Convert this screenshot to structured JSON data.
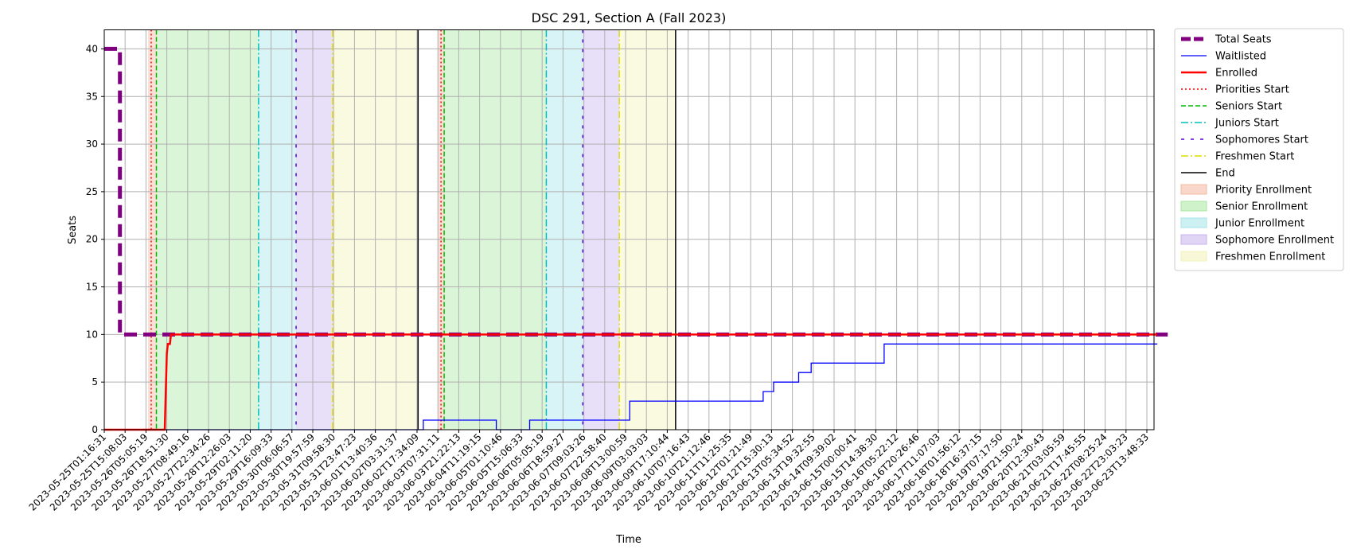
{
  "chart_data": {
    "type": "line",
    "title": "DSC 291, Section A (Fall 2023)",
    "xlabel": "Time",
    "ylabel": "Seats",
    "ylim": [
      0,
      42
    ],
    "yticks": [
      0,
      5,
      10,
      15,
      20,
      25,
      30,
      35,
      40
    ],
    "grid": true,
    "legend_position": "outside-top-right",
    "xtick_labels": [
      "2023-05-25T01:16:31",
      "2023-05-25T15:08:03",
      "2023-05-26T05:05:19",
      "2023-05-26T18:51:30",
      "2023-05-27T08:49:16",
      "2023-05-27T22:34:26",
      "2023-05-28T12:26:03",
      "2023-05-29T02:11:20",
      "2023-05-29T16:09:33",
      "2023-05-30T06:06:57",
      "2023-05-30T19:57:59",
      "2023-05-31T09:58:30",
      "2023-05-31T23:47:23",
      "2023-06-01T13:40:36",
      "2023-06-02T03:31:37",
      "2023-06-02T17:34:09",
      "2023-06-03T07:31:11",
      "2023-06-03T21:22:13",
      "2023-06-04T11:19:15",
      "2023-06-05T01:10:46",
      "2023-06-05T15:06:33",
      "2023-06-06T05:05:19",
      "2023-06-06T18:59:27",
      "2023-06-07T09:03:26",
      "2023-06-07T22:58:40",
      "2023-06-08T13:00:59",
      "2023-06-09T03:03:03",
      "2023-06-09T17:10:44",
      "2023-06-10T07:16:43",
      "2023-06-10T21:12:46",
      "2023-06-11T11:25:35",
      "2023-06-12T01:21:49",
      "2023-06-12T15:30:13",
      "2023-06-13T05:34:52",
      "2023-06-13T19:32:55",
      "2023-06-14T09:39:02",
      "2023-06-15T00:00:41",
      "2023-06-15T14:38:30",
      "2023-06-16T05:22:12",
      "2023-06-16T20:26:46",
      "2023-06-17T11:07:03",
      "2023-06-18T01:56:12",
      "2023-06-18T16:37:15",
      "2023-06-19T07:17:50",
      "2023-06-19T21:50:24",
      "2023-06-20T12:30:43",
      "2023-06-21T03:05:59",
      "2023-06-21T17:45:55",
      "2023-06-22T08:25:24",
      "2023-06-22T23:03:23",
      "2023-06-23T13:48:33"
    ],
    "series": [
      {
        "name": "Total Seats",
        "color": "#800080",
        "style": "dashed-thick",
        "points": [
          [
            0,
            40
          ],
          [
            0.75,
            40
          ],
          [
            0.75,
            10
          ],
          [
            2.8,
            10
          ],
          [
            2.8,
            10
          ],
          [
            51,
            10
          ]
        ]
      },
      {
        "name": "Waitlisted",
        "color": "#0000ff",
        "style": "solid-thin",
        "points": [
          [
            0,
            0
          ],
          [
            15.3,
            0
          ],
          [
            15.3,
            1
          ],
          [
            18.8,
            1
          ],
          [
            18.8,
            0
          ],
          [
            20.4,
            0
          ],
          [
            20.4,
            1
          ],
          [
            25.2,
            1
          ],
          [
            25.2,
            3
          ],
          [
            31.6,
            3
          ],
          [
            31.6,
            4
          ],
          [
            32.1,
            4
          ],
          [
            32.1,
            5
          ],
          [
            33.3,
            5
          ],
          [
            33.3,
            6
          ],
          [
            33.9,
            6
          ],
          [
            33.9,
            7
          ],
          [
            37.4,
            7
          ],
          [
            37.4,
            9
          ],
          [
            50.5,
            9
          ]
        ]
      },
      {
        "name": "Enrolled",
        "color": "#ff0000",
        "style": "solid-thick",
        "points": [
          [
            0,
            0
          ],
          [
            2.9,
            0
          ],
          [
            3.0,
            8
          ],
          [
            3.05,
            9
          ],
          [
            3.15,
            9
          ],
          [
            3.2,
            10
          ],
          [
            50.5,
            10
          ]
        ]
      },
      {
        "name": "Priorities Start",
        "color": "#ff0000",
        "style": "dotted",
        "type": "vline"
      },
      {
        "name": "Seniors Start",
        "color": "#00bb00",
        "style": "dashed",
        "type": "vline"
      },
      {
        "name": "Juniors Start",
        "color": "#00bfbf",
        "style": "dashdot",
        "type": "vline"
      },
      {
        "name": "Sophomores Start",
        "color": "#5500dd",
        "style": "loosedash",
        "type": "vline"
      },
      {
        "name": "Freshmen Start",
        "color": "#dddd00",
        "style": "dashdot",
        "type": "vline"
      },
      {
        "name": "End",
        "color": "#000000",
        "style": "solid",
        "type": "vline"
      }
    ],
    "periods": [
      {
        "name": "Priority Enrollment",
        "color": "#f4b8a0",
        "spans": [
          [
            2.1,
            2.5
          ],
          [
            16.0,
            16.3
          ]
        ],
        "start_line": [
          2.25,
          16.15
        ]
      },
      {
        "name": "Senior Enrollment",
        "color": "#a8e8a0",
        "spans": [
          [
            2.5,
            7.4
          ],
          [
            16.3,
            21.2
          ]
        ],
        "start_line": [
          2.5,
          16.3
        ]
      },
      {
        "name": "Junior Enrollment",
        "color": "#a4e4ea",
        "spans": [
          [
            7.4,
            9.2
          ],
          [
            21.2,
            22.95
          ]
        ],
        "start_line": [
          7.4,
          21.2
        ]
      },
      {
        "name": "Sophomore Enrollment",
        "color": "#c8b2ee",
        "spans": [
          [
            9.2,
            10.95
          ],
          [
            22.95,
            24.7
          ]
        ],
        "start_line": [
          9.2,
          22.95
        ]
      },
      {
        "name": "Freshmen Enrollment",
        "color": "#f2f2b8",
        "spans": [
          [
            10.95,
            15.05
          ],
          [
            24.7,
            27.4
          ]
        ],
        "start_line": [
          10.95,
          24.7
        ]
      }
    ],
    "end_lines": [
      15.05,
      27.4
    ]
  }
}
